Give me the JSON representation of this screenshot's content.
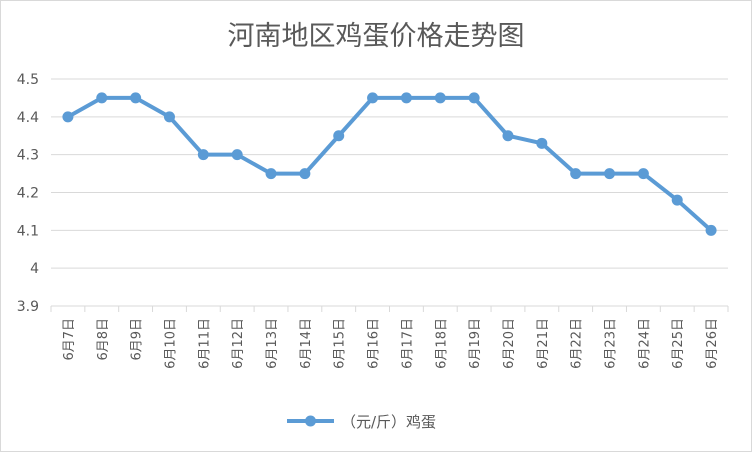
{
  "chart_data": {
    "type": "line",
    "title": "河南地区鸡蛋价格走势图",
    "categories": [
      "6月7日",
      "6月8日",
      "6月9日",
      "6月10日",
      "6月11日",
      "6月12日",
      "6月13日",
      "6月14日",
      "6月15日",
      "6月16日",
      "6月17日",
      "6月18日",
      "6月19日",
      "6月20日",
      "6月21日",
      "6月22日",
      "6月23日",
      "6月24日",
      "6月25日",
      "6月26日"
    ],
    "series": [
      {
        "name": "（元/斤）鸡蛋",
        "values": [
          4.4,
          4.45,
          4.45,
          4.4,
          4.3,
          4.3,
          4.25,
          4.25,
          4.35,
          4.45,
          4.45,
          4.45,
          4.45,
          4.35,
          4.33,
          4.25,
          4.25,
          4.25,
          4.18,
          4.1
        ]
      }
    ],
    "yticks": [
      "3.9",
      "4",
      "4.1",
      "4.2",
      "4.3",
      "4.4",
      "4.5"
    ],
    "ylim": [
      3.9,
      4.5
    ],
    "grid": true,
    "legend": "bottom",
    "colors": {
      "line": "#5b9bd5"
    }
  }
}
